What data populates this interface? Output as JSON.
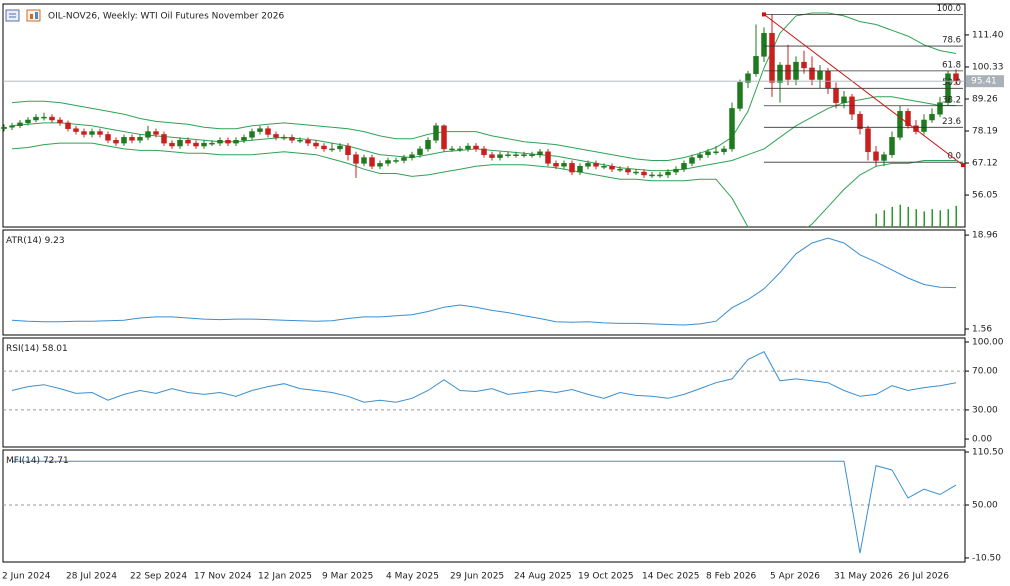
{
  "chart_data": [
    {
      "type": "candlestick",
      "title": "OIL-NOV26, Weekly: WTI Oil Futures November 2026",
      "categories": [
        "2 Jun 2024",
        null,
        null,
        null,
        null,
        null,
        null,
        null,
        "28 Jul 2024",
        null,
        null,
        null,
        null,
        null,
        null,
        null,
        "22 Sep 2024",
        null,
        null,
        null,
        null,
        null,
        null,
        null,
        "17 Nov 2024",
        null,
        null,
        null,
        null,
        null,
        null,
        null,
        "12 Jan 2025",
        null,
        null,
        null,
        null,
        null,
        null,
        null,
        "9 Mar 2025",
        null,
        null,
        null,
        null,
        null,
        null,
        null,
        "4 May 2025",
        null,
        null,
        null,
        null,
        null,
        null,
        null,
        "29 Jun 2025",
        null,
        null,
        null,
        null,
        null,
        null,
        null,
        "24 Aug 2025",
        null,
        null,
        null,
        null,
        null,
        null,
        null,
        "19 Oct 2025",
        null,
        null,
        null,
        null,
        null,
        null,
        null,
        "14 Dec 2025",
        null,
        null,
        null,
        null,
        null,
        null,
        null,
        "8 Feb 2026",
        null,
        null,
        null,
        null,
        null,
        null,
        null,
        "5 Apr 2026",
        null,
        null,
        null,
        null,
        null,
        null,
        null,
        "31 May 2026",
        null,
        null,
        null,
        null,
        null,
        null,
        null,
        "26 Jul 2026",
        null,
        null,
        null,
        null,
        null,
        null,
        null
      ],
      "candles": [
        [
          79,
          80.5,
          78,
          79.5
        ],
        [
          79.5,
          81,
          78.5,
          80
        ],
        [
          80,
          82,
          79.2,
          81
        ],
        [
          81,
          83,
          80.2,
          82
        ],
        [
          82,
          84,
          81.2,
          83
        ],
        [
          83,
          84.5,
          81.8,
          83
        ],
        [
          83,
          84,
          81,
          82
        ],
        [
          82,
          83,
          80,
          81
        ],
        [
          81,
          81.8,
          78,
          79
        ],
        [
          79,
          80,
          77,
          78
        ],
        [
          78,
          79,
          76,
          77
        ],
        [
          77,
          79,
          76,
          78
        ],
        [
          78,
          79,
          76,
          77
        ],
        [
          77,
          78,
          74,
          75
        ],
        [
          75,
          76,
          73,
          74
        ],
        [
          74,
          77,
          73,
          76
        ],
        [
          76,
          77,
          74,
          75
        ],
        [
          75,
          77,
          74,
          76
        ],
        [
          76,
          80,
          75,
          78
        ],
        [
          78,
          79,
          76,
          77
        ],
        [
          77,
          78,
          73,
          74
        ],
        [
          74,
          75,
          72,
          73
        ],
        [
          73,
          76,
          72,
          75
        ],
        [
          75,
          76,
          73,
          74
        ],
        [
          74,
          75,
          72,
          73
        ],
        [
          73,
          75,
          72,
          74
        ],
        [
          74,
          75,
          73,
          74
        ],
        [
          74,
          76,
          73,
          75
        ],
        [
          75,
          76,
          73,
          74
        ],
        [
          74,
          76,
          73,
          75
        ],
        [
          75,
          77,
          74,
          76
        ],
        [
          76,
          79,
          75,
          78
        ],
        [
          78,
          80,
          77,
          79
        ],
        [
          79,
          80,
          76,
          77
        ],
        [
          77,
          78,
          75,
          76
        ],
        [
          76,
          77,
          75,
          76
        ],
        [
          76,
          77,
          74,
          75
        ],
        [
          75,
          76,
          74,
          75
        ],
        [
          75,
          76,
          73,
          74
        ],
        [
          74,
          75,
          72,
          73
        ],
        [
          73,
          74,
          71,
          72
        ],
        [
          72,
          74,
          71,
          72
        ],
        [
          72,
          74,
          71,
          73
        ],
        [
          73,
          74,
          68,
          70
        ],
        [
          70,
          71,
          62,
          67
        ],
        [
          67,
          70,
          66,
          69
        ],
        [
          69,
          70,
          65,
          66
        ],
        [
          66,
          68,
          65,
          67
        ],
        [
          67,
          69,
          66,
          68
        ],
        [
          68,
          69,
          67,
          68
        ],
        [
          68,
          70,
          67,
          69
        ],
        [
          69,
          71,
          68,
          70
        ],
        [
          70,
          73,
          69,
          72
        ],
        [
          72,
          76,
          71,
          75
        ],
        [
          75,
          81,
          74,
          80
        ],
        [
          80,
          80.5,
          71,
          72
        ],
        [
          72,
          73,
          71,
          72
        ],
        [
          72,
          73,
          71,
          72
        ],
        [
          72,
          74,
          71,
          73
        ],
        [
          73,
          74,
          71,
          72
        ],
        [
          72,
          73,
          69,
          70
        ],
        [
          70,
          71,
          68,
          69
        ],
        [
          69,
          71,
          68,
          70
        ],
        [
          70,
          71,
          69,
          70
        ],
        [
          70,
          71,
          69,
          70
        ],
        [
          70,
          71,
          69,
          70
        ],
        [
          70,
          71,
          69,
          70
        ],
        [
          70,
          72,
          69,
          71
        ],
        [
          71,
          72,
          66,
          67
        ],
        [
          67,
          68,
          65,
          66
        ],
        [
          66,
          68,
          65,
          67
        ],
        [
          67,
          68,
          63,
          64
        ],
        [
          64,
          67,
          63,
          66
        ],
        [
          66,
          68,
          65,
          67
        ],
        [
          67,
          68,
          65,
          66
        ],
        [
          66,
          67,
          65,
          66
        ],
        [
          66,
          67,
          64,
          65
        ],
        [
          65,
          66,
          64,
          65
        ],
        [
          65,
          66,
          63,
          64
        ],
        [
          64,
          65,
          63,
          64
        ],
        [
          64,
          65,
          62,
          63
        ],
        [
          63,
          64,
          62,
          63
        ],
        [
          63,
          64,
          62,
          63
        ],
        [
          63,
          65,
          62,
          64
        ],
        [
          64,
          66,
          63,
          65
        ],
        [
          65,
          68,
          64,
          67
        ],
        [
          67,
          70,
          66,
          69
        ],
        [
          69,
          71,
          68,
          70
        ],
        [
          70,
          72,
          69,
          71
        ],
        [
          71,
          73,
          70,
          71
        ],
        [
          71,
          73,
          70,
          72
        ],
        [
          72,
          88,
          71,
          86
        ],
        [
          86,
          96,
          85,
          95
        ],
        [
          95,
          99,
          93,
          98
        ],
        [
          98,
          115,
          97,
          104
        ],
        [
          104,
          114,
          102,
          112
        ],
        [
          112,
          118.5,
          90,
          95
        ],
        [
          95,
          102,
          88,
          101
        ],
        [
          101,
          108,
          94,
          96
        ],
        [
          96,
          104,
          94,
          102
        ],
        [
          102,
          106,
          98,
          100
        ],
        [
          100,
          104,
          94,
          96
        ],
        [
          96,
          101,
          93,
          99
        ],
        [
          99,
          100,
          91,
          93
        ],
        [
          93,
          95,
          86,
          88
        ],
        [
          88,
          92,
          86,
          90
        ],
        [
          90,
          91,
          82,
          84
        ],
        [
          84,
          85,
          77,
          79
        ],
        [
          79,
          80,
          68,
          71
        ],
        [
          71,
          73,
          66,
          68
        ],
        [
          68,
          71,
          66,
          70
        ],
        [
          70,
          78,
          69,
          76
        ],
        [
          76,
          87,
          75,
          85
        ],
        [
          85,
          86,
          79,
          80
        ],
        [
          80,
          82,
          77,
          78
        ],
        [
          78,
          84,
          77,
          82
        ],
        [
          82,
          86,
          81,
          84
        ],
        [
          84,
          90,
          83,
          88
        ],
        [
          88,
          99,
          87,
          98
        ],
        [
          98,
          99.5,
          94,
          95.41
        ]
      ],
      "up_color": "#1f7a1f",
      "down_color": "#c8201e",
      "ylim": [
        45.0,
        122.1
      ],
      "yticks": [
        {
          "value": 111.4,
          "label": "111.40"
        },
        100.33,
        89.26,
        78.19,
        67.12,
        56.05
      ],
      "bands": [
        {
          "color": "#2ea354",
          "values": [
            88,
            88.5,
            88.5,
            88,
            87,
            86,
            85,
            84,
            82.5,
            81.5,
            81,
            80.5,
            79.5,
            79,
            79,
            80,
            80.5,
            81,
            80.5,
            80,
            79.5,
            79,
            78,
            76.5,
            75.5,
            75.5,
            77,
            78,
            78,
            78,
            76.5,
            75.5,
            74.5,
            74,
            73.5,
            72.5,
            71.5,
            70.5,
            69.5,
            68.5,
            68,
            68,
            69,
            70.5,
            72.5,
            76,
            85,
            100,
            112,
            118,
            119,
            119,
            118,
            116,
            115,
            113,
            111,
            108,
            106,
            105
          ]
        },
        {
          "color": "#2ea354",
          "values": [
            80,
            80.5,
            81,
            81,
            80.5,
            80,
            79,
            78,
            77,
            76.5,
            76,
            75.5,
            75,
            74.5,
            74.5,
            75,
            75.5,
            76,
            75.5,
            75,
            74,
            73,
            71.5,
            70,
            69.5,
            69,
            70,
            71,
            71.5,
            72,
            71.5,
            71,
            70.5,
            70,
            69.5,
            68.5,
            67.5,
            66.5,
            65.5,
            65,
            64.5,
            64.5,
            65,
            66,
            67,
            68,
            70,
            72,
            76,
            80,
            83,
            86,
            88,
            89,
            90,
            90,
            89,
            88,
            87,
            87
          ]
        },
        {
          "color": "#2ea354",
          "values": [
            72,
            72.5,
            73.5,
            74,
            74,
            74,
            73,
            72,
            71.5,
            71.5,
            71,
            70.5,
            70.5,
            70,
            70,
            70,
            70.5,
            71,
            70.5,
            70,
            68.5,
            67,
            65,
            63.5,
            63.5,
            62.5,
            63,
            64,
            65,
            66,
            66.5,
            66.5,
            66.5,
            66,
            65.5,
            64.5,
            63.5,
            62.5,
            61.5,
            61.5,
            61,
            61,
            61,
            61.5,
            61.5,
            55,
            45,
            40,
            40,
            42,
            46,
            52,
            58,
            63,
            66,
            67,
            67,
            68,
            68,
            68
          ]
        }
      ],
      "fibo": {
        "color": "#333333",
        "high": 118.5,
        "low": 67.4,
        "levels": [
          {
            "value": 100,
            "label": "100.0"
          },
          78.6,
          61.8,
          {
            "value": 50,
            "label": "50.0"
          },
          38.2,
          23.6,
          {
            "value": 0,
            "label": "0.0"
          }
        ]
      },
      "trendline": {
        "color": "#cc1111",
        "start": 118.5,
        "end": 66.4
      },
      "volume": {
        "color": "#2a9a2a",
        "vlim": [
          0,
          200
        ],
        "values": [
          12,
          15,
          18,
          20,
          18,
          16,
          14,
          16,
          15,
          16,
          19
        ]
      },
      "last_price_color": "#a8b0b8"
    },
    {
      "type": "line",
      "label": "ATR(14)",
      "color": "#3a8fd0",
      "ylim": [
        0.45,
        19.9
      ],
      "yticks": [
        18.96,
        1.56
      ],
      "values": [
        3.2,
        3.0,
        2.9,
        2.9,
        3.0,
        3.0,
        3.1,
        3.2,
        3.6,
        3.8,
        3.8,
        3.6,
        3.4,
        3.3,
        3.4,
        3.4,
        3.3,
        3.2,
        3.1,
        3.0,
        3.1,
        3.5,
        3.8,
        3.8,
        4.0,
        4.2,
        4.8,
        5.6,
        6.0,
        5.6,
        5.0,
        4.6,
        4.0,
        3.5,
        2.9,
        2.8,
        2.9,
        2.7,
        2.6,
        2.6,
        2.5,
        2.4,
        2.3,
        2.5,
        3.0,
        5.5,
        7.0,
        9.0,
        12.0,
        15.5,
        17.5,
        18.4,
        17.5,
        15.3,
        14.0,
        12.5,
        11.0,
        9.8,
        9.3,
        9.23
      ]
    },
    {
      "type": "line",
      "label": "RSI(14)",
      "color": "#3a8fd0",
      "ylim": [
        -8.2,
        104.1
      ],
      "yticks": [
        {
          "value": 100,
          "label": "100.00"
        },
        {
          "value": 70,
          "label": "70.00"
        },
        {
          "value": 30,
          "label": "30.00"
        },
        {
          "value": 0,
          "label": "0.00"
        }
      ],
      "levels": [
        70,
        30
      ],
      "values": [
        50,
        54,
        56,
        52,
        47,
        48,
        40,
        46,
        50,
        47,
        52,
        48,
        46,
        48,
        44,
        50,
        54,
        57,
        52,
        50,
        48,
        44,
        38,
        40,
        38,
        42,
        50,
        61,
        50,
        49,
        52,
        46,
        48,
        50,
        48,
        51,
        46,
        42,
        48,
        45,
        44,
        42,
        46,
        52,
        58,
        62,
        82,
        90,
        60,
        62,
        60,
        58,
        50,
        44,
        46,
        55,
        50,
        53,
        55,
        58.01
      ]
    },
    {
      "type": "line",
      "label": "MFI(14)",
      "color": "#3a8fd0",
      "ylim": [
        -15.1,
        112.8
      ],
      "yticks": [
        {
          "value": 110.5,
          "label": "110.50"
        },
        {
          "value": 50,
          "label": "50.00"
        },
        {
          "value": -10.5,
          "label": "-10.50"
        }
      ],
      "levels": [
        50
      ],
      "values": [
        100,
        100,
        100,
        100,
        100,
        100,
        100,
        100,
        100,
        100,
        100,
        100,
        100,
        100,
        100,
        100,
        100,
        100,
        100,
        100,
        100,
        100,
        100,
        100,
        100,
        100,
        100,
        100,
        100,
        100,
        100,
        100,
        100,
        100,
        100,
        100,
        100,
        100,
        100,
        100,
        100,
        100,
        100,
        100,
        100,
        100,
        100,
        100,
        100,
        100,
        100,
        100,
        100,
        -5,
        95,
        90,
        58,
        68,
        62,
        72.71
      ]
    }
  ]
}
